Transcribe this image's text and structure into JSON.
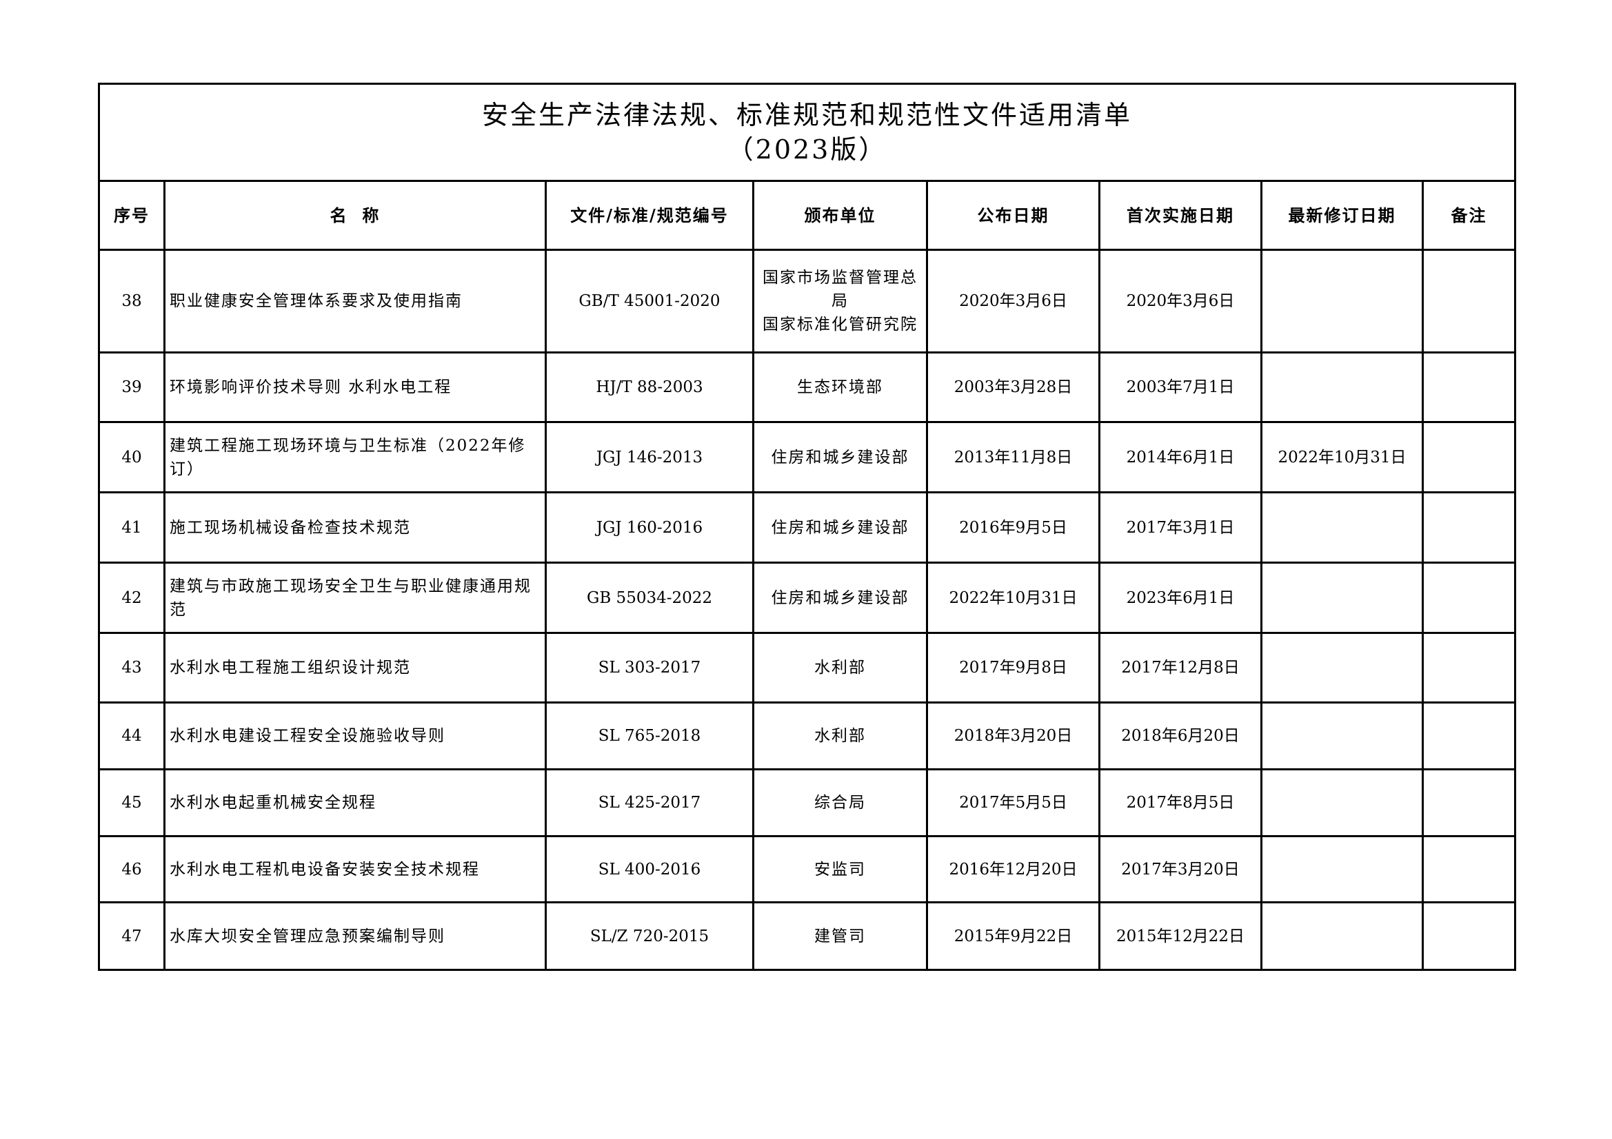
{
  "document": {
    "title": "安全生产法律法规、标准规范和规范性文件适用清单",
    "subtitle": "（2023版）"
  },
  "table": {
    "headers": [
      "序号",
      "名  称",
      "文件/标准/规范编号",
      "颁布单位",
      "公布日期",
      "首次实施日期",
      "最新修订日期",
      "备注"
    ],
    "rows": [
      {
        "no": "38",
        "name": "职业健康安全管理体系要求及使用指南",
        "code": "GB/T 45001-2020",
        "issuer": "国家市场监督管理总局\n国家标准化管研究院",
        "published": "2020年3月6日",
        "effective": "2020年3月6日",
        "revised": "",
        "remark": ""
      },
      {
        "no": "39",
        "name": "环境影响评价技术导则 水利水电工程",
        "code": "HJ/T 88-2003",
        "issuer": "生态环境部",
        "published": "2003年3月28日",
        "effective": "2003年7月1日",
        "revised": "",
        "remark": ""
      },
      {
        "no": "40",
        "name": "建筑工程施工现场环境与卫生标准（2022年修订）",
        "code": "JGJ 146-2013",
        "issuer": "住房和城乡建设部",
        "published": "2013年11月8日",
        "effective": "2014年6月1日",
        "revised": "2022年10月31日",
        "remark": ""
      },
      {
        "no": "41",
        "name": "施工现场机械设备检查技术规范",
        "code": "JGJ 160-2016",
        "issuer": "住房和城乡建设部",
        "published": "2016年9月5日",
        "effective": "2017年3月1日",
        "revised": "",
        "remark": ""
      },
      {
        "no": "42",
        "name": "建筑与市政施工现场安全卫生与职业健康通用规范",
        "code": "GB 55034-2022",
        "issuer": "住房和城乡建设部",
        "published": "2022年10月31日",
        "effective": "2023年6月1日",
        "revised": "",
        "remark": ""
      },
      {
        "no": "43",
        "name": "水利水电工程施工组织设计规范",
        "code": "SL 303-2017",
        "issuer": "水利部",
        "published": "2017年9月8日",
        "effective": "2017年12月8日",
        "revised": "",
        "remark": ""
      },
      {
        "no": "44",
        "name": "水利水电建设工程安全设施验收导则",
        "code": "SL 765-2018",
        "issuer": "水利部",
        "published": "2018年3月20日",
        "effective": "2018年6月20日",
        "revised": "",
        "remark": ""
      },
      {
        "no": "45",
        "name": "水利水电起重机械安全规程",
        "code": "SL 425-2017",
        "issuer": "综合局",
        "published": "2017年5月5日",
        "effective": "2017年8月5日",
        "revised": "",
        "remark": ""
      },
      {
        "no": "46",
        "name": "水利水电工程机电设备安装安全技术规程",
        "code": "SL 400-2016",
        "issuer": "安监司",
        "published": "2016年12月20日",
        "effective": "2017年3月20日",
        "revised": "",
        "remark": ""
      },
      {
        "no": "47",
        "name": "水库大坝安全管理应急预案编制导则",
        "code": "SL/Z 720-2015",
        "issuer": "建管司",
        "published": "2015年9月22日",
        "effective": "2015年12月22日",
        "revised": "",
        "remark": ""
      }
    ]
  }
}
